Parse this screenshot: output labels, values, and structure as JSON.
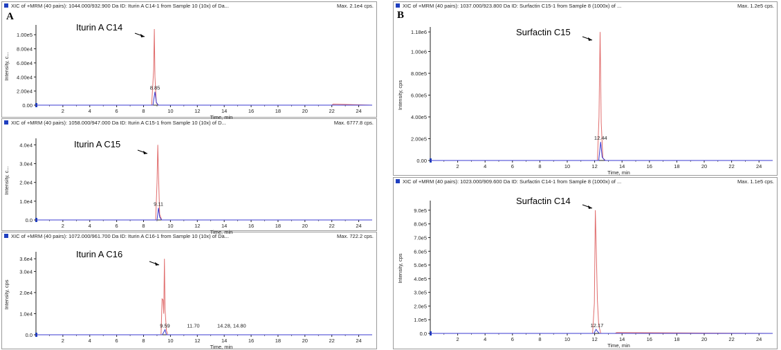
{
  "figure": {
    "letters": {
      "A": "A",
      "B": "B"
    },
    "header_titles": [
      "XIC of +MRM (40 pairs): 1044.000/932.900 Da ID: Iturin A C14-1 from Sample 10 (10x) of Da...",
      "XIC of +MRM (40 pairs): 1058.000/947.000 Da ID: Iturin A C15-1 from Sample 10 (10x) of D...",
      "XIC of +MRM (40 pairs): 1072.000/961.700 Da ID: Iturin A C16-1 from Sample 10 (10x) of Da...",
      "XIC of +MRM (40 pairs): 1037.000/923.800 Da ID: Surfactin C15-1 from Sample 8 (1000x) of ...",
      "XIC of +MRM (40 pairs): 1023.000/909.600 Da ID: Surfactin C14-1 from Sample 8 (1000x) of ..."
    ],
    "header_max": [
      "Max. 2.1e4 cps.",
      "Max. 6777.8 cps.",
      "Max. 722.2 cps.",
      "Max. 1.2e5 cps.",
      "Max. 1.1e5 cps."
    ],
    "colors": {
      "red": "#e06c6c",
      "blue": "#3a3ad0",
      "axis": "#222222",
      "marker": "#1f3fbf"
    }
  },
  "chart_data": [
    {
      "type": "line",
      "panel": "A",
      "title": "Iturin A C14",
      "xlabel": "Time, min",
      "ylabel": "Intensity, c...",
      "xlim": [
        0,
        25
      ],
      "ylim": [
        0,
        110000
      ],
      "xticks": [
        2,
        4,
        6,
        8,
        10,
        12,
        14,
        16,
        18,
        20,
        22,
        24
      ],
      "yticks": [
        0,
        20000,
        40000,
        60000,
        80000,
        100000
      ],
      "ytick_labels": [
        "0.00",
        "2.00e4",
        "4.00e4",
        "6.00e4",
        "8.00e4",
        "1.00e5"
      ],
      "annotation": {
        "text": "Iturin A C14",
        "arrow_to": [
          8.8,
          100000
        ]
      },
      "peak_labels": [
        {
          "x": 8.85,
          "text": "8.85"
        }
      ],
      "series": [
        {
          "color": "red",
          "x": [
            0,
            8.6,
            8.75,
            8.8,
            8.85,
            8.95,
            9.1,
            22.0,
            22.1,
            25
          ],
          "y": [
            0,
            0,
            50000,
            108000,
            40000,
            3000,
            0,
            0,
            1500,
            0
          ]
        },
        {
          "color": "blue",
          "x": [
            0,
            8.7,
            8.85,
            8.95,
            9.1,
            25
          ],
          "y": [
            0,
            0,
            19000,
            4000,
            0,
            0
          ]
        }
      ]
    },
    {
      "type": "line",
      "panel": "A",
      "title": "Iturin A C15",
      "xlabel": "Time, min",
      "ylabel": "Intensity, c...",
      "xlim": [
        0,
        25
      ],
      "ylim": [
        0,
        42000
      ],
      "xticks": [
        2,
        4,
        6,
        8,
        10,
        12,
        14,
        16,
        18,
        20,
        22,
        24
      ],
      "yticks": [
        0,
        10000,
        20000,
        30000,
        40000
      ],
      "ytick_labels": [
        "0.0",
        "1.0e4",
        "2.0e4",
        "3.0e4",
        "4.0e4"
      ],
      "annotation": {
        "text": "Iturin A C15",
        "arrow_to": [
          9.05,
          38000
        ]
      },
      "peak_labels": [
        {
          "x": 9.11,
          "text": "9.11"
        }
      ],
      "series": [
        {
          "color": "red",
          "x": [
            0,
            8.9,
            9.0,
            9.06,
            9.12,
            9.2,
            9.35,
            25
          ],
          "y": [
            0,
            0,
            20000,
            40000,
            22000,
            3000,
            0,
            0
          ]
        },
        {
          "color": "blue",
          "x": [
            0,
            9.0,
            9.11,
            9.2,
            9.35,
            25
          ],
          "y": [
            0,
            0,
            6500,
            1500,
            0,
            0
          ]
        }
      ]
    },
    {
      "type": "line",
      "panel": "A",
      "title": "Iturin A C16",
      "xlabel": "Time, min",
      "ylabel": "Intensity, cps",
      "xlim": [
        0,
        25
      ],
      "ylim": [
        0,
        38000
      ],
      "xticks": [
        2,
        4,
        6,
        8,
        10,
        12,
        14,
        16,
        18,
        20,
        22,
        24
      ],
      "yticks": [
        0,
        10000,
        20000,
        30000,
        36000
      ],
      "ytick_labels": [
        "0.0",
        "1.0e4",
        "2.0e4",
        "3.0e4",
        "3.6e4"
      ],
      "annotation": {
        "text": "Iturin A C16",
        "arrow_to": [
          9.5,
          34000
        ]
      },
      "peak_labels": [
        {
          "x": 9.59,
          "text": "9.59"
        },
        {
          "x": 11.7,
          "text": "11.70"
        },
        {
          "x": 14.55,
          "text": "14.28, 14.80"
        }
      ],
      "series": [
        {
          "color": "red",
          "x": [
            0,
            9.3,
            9.38,
            9.45,
            9.5,
            9.55,
            9.6,
            9.7,
            9.8,
            25
          ],
          "y": [
            0,
            0,
            17000,
            16500,
            10000,
            36000,
            12000,
            2000,
            0,
            0
          ]
        },
        {
          "color": "blue",
          "x": [
            0,
            9.4,
            9.5,
            9.6,
            9.7,
            25
          ],
          "y": [
            0,
            0,
            1200,
            2400,
            0,
            0
          ]
        }
      ]
    },
    {
      "type": "line",
      "panel": "B",
      "title": "Surfactin C15",
      "xlabel": "Time, min",
      "ylabel": "Intensity, cps",
      "xlim": [
        0,
        25
      ],
      "ylim": [
        0,
        1200000
      ],
      "xticks": [
        2,
        4,
        6,
        8,
        10,
        12,
        14,
        16,
        18,
        20,
        22,
        24
      ],
      "yticks": [
        0,
        200000,
        400000,
        600000,
        800000,
        1000000,
        1180000
      ],
      "ytick_labels": [
        "0.00",
        "2.00e5",
        "4.00e5",
        "6.00e5",
        "8.00e5",
        "1.00e6",
        "1.18e6"
      ],
      "annotation": {
        "text": "Surfactin C15",
        "arrow_to": [
          12.35,
          1080000
        ]
      },
      "peak_labels": [
        {
          "x": 12.44,
          "text": "12.44"
        }
      ],
      "series": [
        {
          "color": "red",
          "x": [
            0,
            12.2,
            12.32,
            12.4,
            12.48,
            12.6,
            12.8,
            25
          ],
          "y": [
            0,
            0,
            400000,
            1180000,
            350000,
            20000,
            0,
            0
          ]
        },
        {
          "color": "blue",
          "x": [
            0,
            12.3,
            12.44,
            12.55,
            12.75,
            25
          ],
          "y": [
            0,
            0,
            170000,
            30000,
            0,
            0
          ]
        }
      ]
    },
    {
      "type": "line",
      "panel": "B",
      "title": "Surfactin C14",
      "xlabel": "Time, min",
      "ylabel": "Intensity, cps",
      "xlim": [
        0,
        25
      ],
      "ylim": [
        0,
        950000
      ],
      "xticks": [
        2,
        4,
        6,
        8,
        10,
        12,
        14,
        16,
        18,
        20,
        22,
        24
      ],
      "yticks": [
        0,
        100000,
        200000,
        300000,
        400000,
        500000,
        600000,
        700000,
        800000,
        900000
      ],
      "ytick_labels": [
        "0.0",
        "1.0e5",
        "2.0e5",
        "3.0e5",
        "4.0e5",
        "5.0e5",
        "6.0e5",
        "7.0e5",
        "8.0e5",
        "9.0e5"
      ],
      "annotation": {
        "text": "Surfactin C14",
        "arrow_to": [
          12.05,
          860000
        ]
      },
      "peak_labels": [
        {
          "x": 12.17,
          "text": "12.17"
        }
      ],
      "series": [
        {
          "color": "red",
          "x": [
            0,
            11.85,
            11.98,
            12.05,
            12.12,
            12.2,
            12.3,
            12.45,
            13.5,
            13.6,
            25
          ],
          "y": [
            0,
            0,
            220000,
            900000,
            600000,
            240000,
            60000,
            0,
            0,
            6000,
            0
          ]
        },
        {
          "color": "blue",
          "x": [
            0,
            11.95,
            12.1,
            12.2,
            12.35,
            25
          ],
          "y": [
            0,
            0,
            30000,
            15000,
            0,
            0
          ]
        }
      ]
    }
  ]
}
